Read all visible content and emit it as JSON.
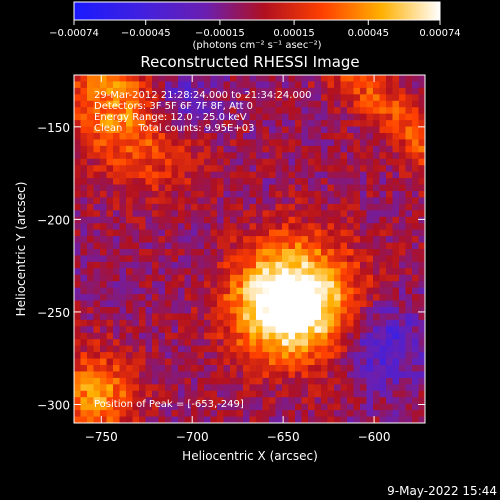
{
  "chart_data": {
    "type": "heatmap",
    "title": "Reconstructed RHESSI Image",
    "xlabel": "Heliocentric X (arcsec)",
    "ylabel": "Heliocentric Y (arcsec)",
    "xlim": [
      -765,
      -572
    ],
    "ylim": [
      -310,
      -122
    ],
    "xticks": [
      -750,
      -700,
      -650,
      -600
    ],
    "xtick_labels": [
      "−750",
      "−700",
      "−650",
      "−600"
    ],
    "yticks": [
      -150,
      -200,
      -250,
      -300
    ],
    "ytick_labels": [
      "−150",
      "−200",
      "−250",
      "−300"
    ],
    "colorbar": {
      "range": [
        -0.00074,
        0.00074
      ],
      "ticks": [
        -0.00074,
        -0.00045,
        -0.00015,
        0.00015,
        0.00045,
        0.00074
      ],
      "tick_labels": [
        "−0.00074",
        "−0.00045",
        "−0.00015",
        "0.00015",
        "0.00045",
        "0.00074"
      ],
      "units_label": "(photons cm⁻² s⁻¹ asec⁻²)",
      "colors": [
        "#1a1aff",
        "#4020e0",
        "#6b1fb0",
        "#b01020",
        "#ff4000",
        "#ffb000",
        "#ffffff"
      ]
    },
    "annotations": [
      "29-Mar-2012 21:28:24.000 to 21:34:24.000",
      "Detectors: 3F 5F 6F 7F 8F, Att 0",
      "Energy Range: 12.0 - 25.0 keV",
      "Clean     Total counts: 9.95E+03"
    ],
    "peak_label": "Position of Peak = [-653,-249]",
    "peak": [
      -653,
      -249
    ]
  },
  "footer": {
    "date": "9-May-2022 15:44"
  }
}
